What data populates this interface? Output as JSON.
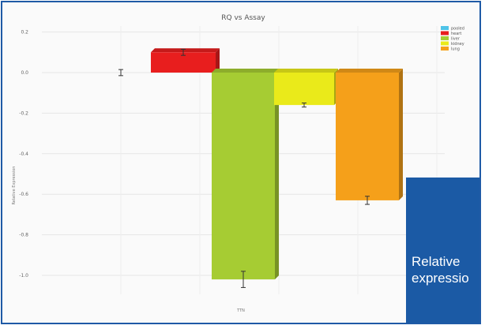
{
  "chart_data": {
    "type": "bar",
    "title": "RQ vs Assay",
    "xlabel": "",
    "ylabel": "Relative Expression",
    "categories": [
      "TTN"
    ],
    "series": [
      {
        "name": "pooled",
        "value": 0.0,
        "error": 0.015,
        "color": "#4fc3e8"
      },
      {
        "name": "heart",
        "value": 0.1,
        "error": 0.015,
        "color": "#e81e1e"
      },
      {
        "name": "liver",
        "value": -1.02,
        "error": 0.04,
        "color": "#a6cc33"
      },
      {
        "name": "kidney",
        "value": -0.16,
        "error": 0.01,
        "color": "#eaea1a"
      },
      {
        "name": "lung",
        "value": -0.63,
        "error": 0.02,
        "color": "#f5a01a"
      }
    ],
    "yticks": [
      "0.2",
      "0.0",
      "-0.2",
      "-0.4",
      "-0.6",
      "-0.8",
      "-1.0"
    ],
    "ytick_values": [
      0.2,
      0.0,
      -0.2,
      -0.4,
      -0.6,
      -0.8,
      -1.0
    ],
    "ylim": [
      -1.15,
      0.22
    ],
    "grid": true,
    "legend_position": "top-right"
  },
  "overlay": {
    "text_line1": "Relative",
    "text_line2": "expressio"
  }
}
